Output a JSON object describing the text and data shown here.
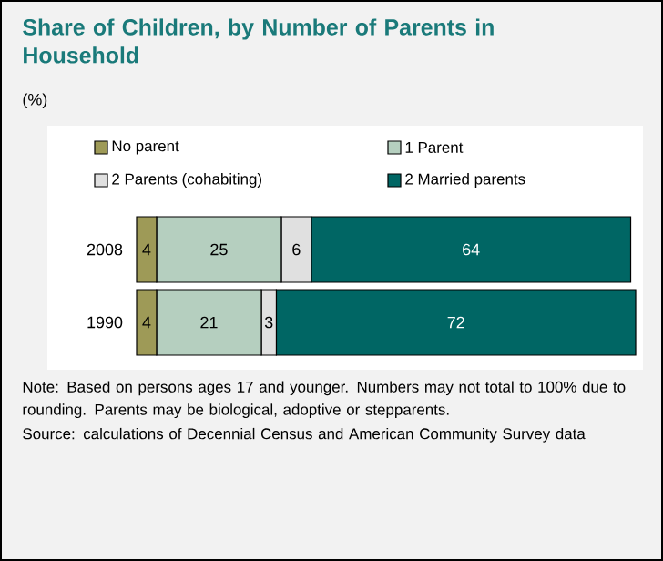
{
  "chart_data": {
    "type": "bar",
    "orientation": "horizontal",
    "stacked": true,
    "title": "Share of Children, by Number of Parents in Household",
    "subtitle": "(%)",
    "categories": [
      "2008",
      "1990"
    ],
    "series": [
      {
        "name": "No parent",
        "color": "#9e9a57",
        "values": [
          4,
          4
        ]
      },
      {
        "name": "1 Parent",
        "color": "#b5cfbf",
        "values": [
          25,
          21
        ]
      },
      {
        "name": "2 Parents (cohabiting)",
        "color": "#e0e0e0",
        "values": [
          6,
          3
        ]
      },
      {
        "name": "2 Married parents",
        "color": "#006664",
        "values": [
          64,
          72
        ]
      }
    ],
    "data_labels": true,
    "legend": "top",
    "tick_labels": "y",
    "grid": false,
    "annotations": [
      "Note: Based on persons ages 17 and younger. Numbers may not total to 100% due to rounding. Parents may be biological, adoptive or stepparents.",
      "Source: calculations of Decennial Census and American Community Survey data"
    ]
  }
}
